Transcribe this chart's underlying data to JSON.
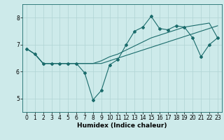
{
  "title": "",
  "xlabel": "Humidex (Indice chaleur)",
  "xlim": [
    -0.5,
    23.5
  ],
  "ylim": [
    4.5,
    8.5
  ],
  "yticks": [
    5,
    6,
    7,
    8
  ],
  "xticks": [
    0,
    1,
    2,
    3,
    4,
    5,
    6,
    7,
    8,
    9,
    10,
    11,
    12,
    13,
    14,
    15,
    16,
    17,
    18,
    19,
    20,
    21,
    22,
    23
  ],
  "bg_color": "#cdeaea",
  "line_color": "#1a6b6b",
  "grid_color": "#afd4d4",
  "series_jagged": [
    6.85,
    6.65,
    6.3,
    6.3,
    6.3,
    6.3,
    6.3,
    5.95,
    4.95,
    5.3,
    6.25,
    6.45,
    7.0,
    7.5,
    7.65,
    8.05,
    7.6,
    7.55,
    7.7,
    7.65,
    7.25,
    6.55,
    7.0,
    7.25
  ],
  "series_line1": [
    6.85,
    6.65,
    6.3,
    6.3,
    6.3,
    6.3,
    6.3,
    6.3,
    6.3,
    6.3,
    6.4,
    6.5,
    6.6,
    6.7,
    6.8,
    6.9,
    7.0,
    7.1,
    7.2,
    7.3,
    7.4,
    7.5,
    7.6,
    7.7
  ],
  "series_line2": [
    6.85,
    6.65,
    6.3,
    6.3,
    6.3,
    6.3,
    6.3,
    6.3,
    6.3,
    6.4,
    6.55,
    6.65,
    6.8,
    6.95,
    7.1,
    7.25,
    7.35,
    7.45,
    7.55,
    7.65,
    7.7,
    7.75,
    7.8,
    7.25
  ],
  "xlabel_fontsize": 6.5,
  "tick_fontsize": 5.5,
  "linewidth": 0.8,
  "markersize": 2.0
}
